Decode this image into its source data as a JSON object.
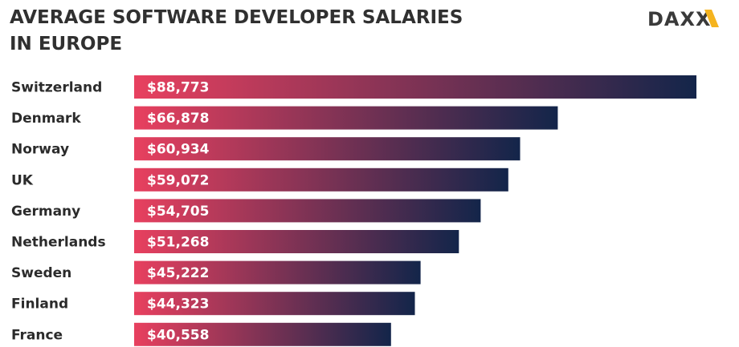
{
  "title_line1": "AVERAGE SOFTWARE DEVELOPER SALARIES",
  "title_line2": "IN EUROPE",
  "logo_text": "DAXX",
  "colors": {
    "bar_start": "#e8405f",
    "bar_end": "#13254a",
    "logo_accent": "#f5b41f",
    "text": "#303030"
  },
  "chart_data": {
    "type": "bar",
    "orientation": "horizontal",
    "title": "AVERAGE SOFTWARE DEVELOPER SALARIES IN EUROPE",
    "categories": [
      "Switzerland",
      "Denmark",
      "Norway",
      "UK",
      "Germany",
      "Netherlands",
      "Sweden",
      "Finland",
      "France"
    ],
    "values": [
      88773,
      66878,
      60934,
      59072,
      54705,
      51268,
      45222,
      44323,
      40558
    ],
    "value_labels": [
      "$88,773",
      "$66,878",
      "$60,934",
      "$59,072",
      "$54,705",
      "$51,268",
      "$45,222",
      "$44,323",
      "$40,558"
    ],
    "xlim": [
      0,
      88773
    ],
    "xlabel": "",
    "ylabel": "",
    "grid": false,
    "legend": "none"
  }
}
